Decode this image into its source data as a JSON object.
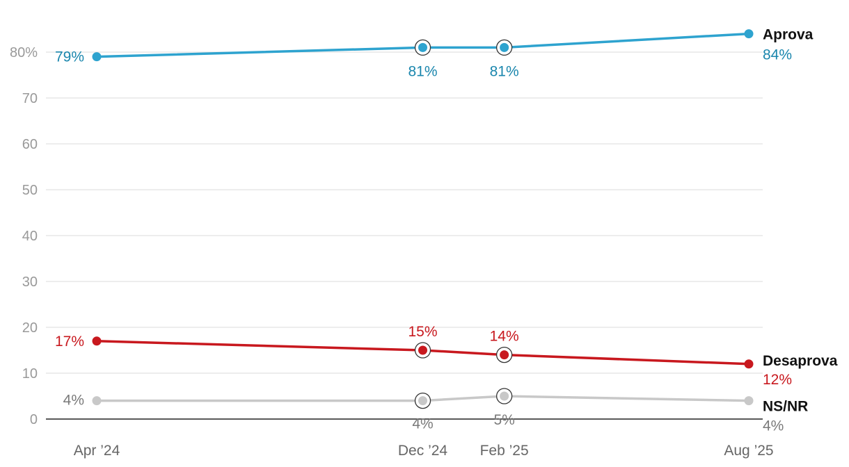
{
  "chart_data": {
    "type": "line",
    "title": "",
    "xlabel": "",
    "ylabel": "",
    "categories": [
      "Apr ’24",
      "Dec ’24",
      "Feb ’25",
      "Aug ’25"
    ],
    "x_months": [
      0,
      8,
      10,
      16
    ],
    "ylim": [
      0,
      86
    ],
    "yticks": [
      {
        "value": 0,
        "label": "0"
      },
      {
        "value": 10,
        "label": "10"
      },
      {
        "value": 20,
        "label": "20"
      },
      {
        "value": 30,
        "label": "30"
      },
      {
        "value": 40,
        "label": "40"
      },
      {
        "value": 50,
        "label": "50"
      },
      {
        "value": 60,
        "label": "60"
      },
      {
        "value": 70,
        "label": "70"
      },
      {
        "value": 80,
        "label": "80%"
      }
    ],
    "grid": true,
    "series": [
      {
        "name": "Aprova",
        "color": "#2ea3cf",
        "label_color": "#1a86ad",
        "values": [
          79,
          81,
          81,
          84
        ],
        "labels": [
          "79%",
          "81%",
          "81%",
          "84%"
        ]
      },
      {
        "name": "Desaprova",
        "color": "#c8181e",
        "label_color": "#c8181e",
        "values": [
          17,
          15,
          14,
          12
        ],
        "labels": [
          "17%",
          "15%",
          "14%",
          "12%"
        ]
      },
      {
        "name": "NS/NR",
        "color": "#c8c8c8",
        "label_color": "#7a7a7a",
        "values": [
          4,
          4,
          5,
          4
        ],
        "labels": [
          "4%",
          "4%",
          "5%",
          "4%"
        ]
      }
    ],
    "highlighted_points": [
      1,
      2
    ]
  }
}
